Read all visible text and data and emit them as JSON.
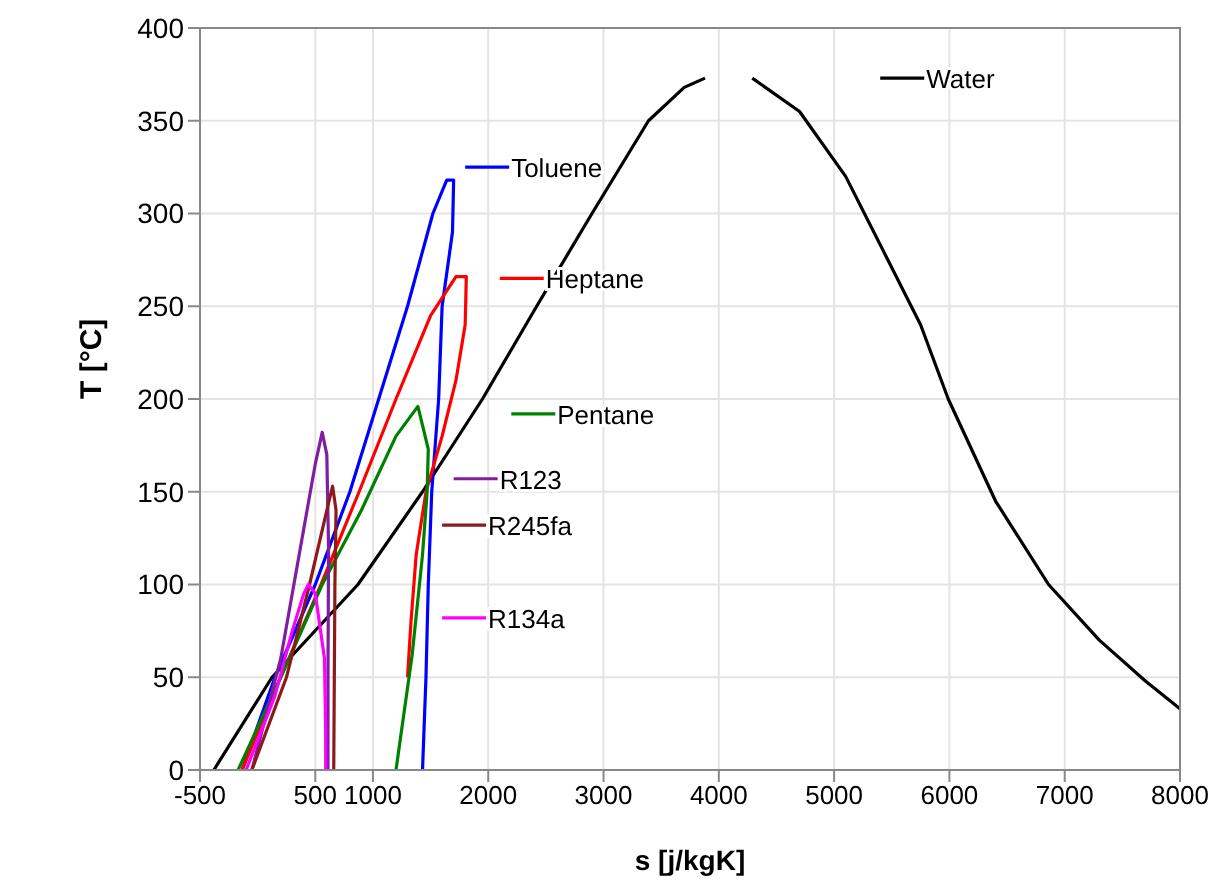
{
  "chart_data": {
    "type": "line",
    "xlabel": "s [j/kgK]",
    "ylabel": "T [°C]",
    "xlim": [
      -500,
      8000
    ],
    "xticks": [
      -500,
      500,
      1000,
      2000,
      3000,
      4000,
      5000,
      6000,
      7000,
      8000
    ],
    "ylim": [
      0,
      400
    ],
    "yticks": [
      0,
      50,
      100,
      150,
      200,
      250,
      300,
      350,
      400
    ],
    "grid": true,
    "marker": "none",
    "line_style": "solid",
    "legend": "right",
    "series": [
      {
        "name": "Water",
        "color": "#000000",
        "x": [
          -380,
          125,
          870,
          1430,
          1950,
          2420,
          2900,
          3390,
          3700,
          3880,
          null,
          4290,
          4700,
          5100,
          5450,
          5750,
          5990,
          6400,
          6860,
          7300,
          7700,
          8000
        ],
        "values": [
          0,
          50,
          100,
          150,
          200,
          250,
          300,
          350,
          368,
          373,
          null,
          373,
          355,
          320,
          277,
          240,
          200,
          145,
          100,
          70,
          48,
          33
        ]
      },
      {
        "name": "Toluene",
        "color": "#0000ff",
        "x": [
          -135,
          150,
          500,
          800,
          1050,
          1300,
          1520,
          1640,
          1700,
          1690,
          1600,
          1570,
          1510,
          1480,
          1460,
          1430
        ],
        "values": [
          0,
          50,
          100,
          150,
          200,
          250,
          300,
          318,
          318,
          290,
          250,
          200,
          150,
          100,
          50,
          0
        ]
      },
      {
        "name": "Heptane",
        "color": "#ff0000",
        "x": [
          -135,
          200,
          550,
          880,
          1200,
          1500,
          1720,
          1810,
          1800,
          1720,
          1600,
          1460,
          1375,
          1330,
          1300
        ],
        "values": [
          0,
          50,
          100,
          150,
          200,
          245,
          266,
          266,
          240,
          210,
          180,
          150,
          116,
          80,
          50
        ]
      },
      {
        "name": "Pentane",
        "color": "#008000",
        "x": [
          -170,
          200,
          560,
          900,
          1200,
          1390,
          1480,
          1470,
          1430,
          1340,
          1200
        ],
        "values": [
          0,
          50,
          100,
          140,
          180,
          196,
          173,
          150,
          116,
          62,
          0
        ]
      },
      {
        "name": "R123",
        "color": "#7f1f9f",
        "x": [
          -50,
          200,
          400,
          500,
          560,
          600,
          615,
          610,
          610
        ],
        "values": [
          0,
          60,
          130,
          165,
          182,
          170,
          120,
          50,
          0
        ]
      },
      {
        "name": "R245fa",
        "color": "#8b1a1a",
        "x": [
          -50,
          250,
          450,
          600,
          650,
          680,
          670,
          665,
          660
        ],
        "values": [
          0,
          50,
          100,
          140,
          153,
          140,
          100,
          50,
          0
        ]
      },
      {
        "name": "R134a",
        "color": "#ff00ff",
        "x": [
          -100,
          150,
          300,
          400,
          440,
          500,
          580,
          590,
          590
        ],
        "values": [
          0,
          40,
          75,
          95,
          100,
          95,
          60,
          20,
          0
        ]
      }
    ]
  }
}
